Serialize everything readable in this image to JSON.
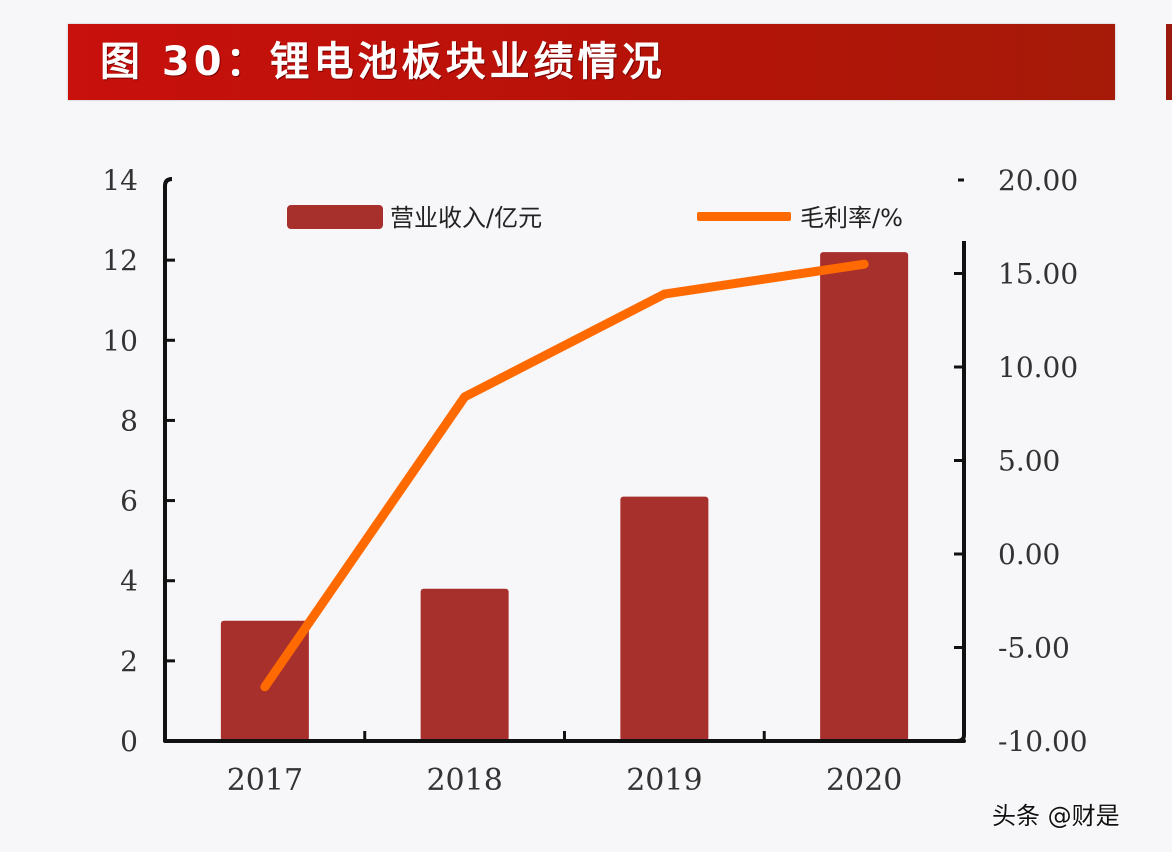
{
  "header": {
    "title": "图 30：锂电池板块业绩情况",
    "bg_color": "#b81208"
  },
  "watermark": "头条 @财是",
  "chart_data": {
    "type": "bar+line",
    "title": "图 30：锂电池板块业绩情况",
    "categories": [
      "2017",
      "2018",
      "2019",
      "2020"
    ],
    "series": [
      {
        "name": "营业收入/亿元",
        "type": "bar",
        "axis": "left",
        "color": "#a8302c",
        "values": [
          3.0,
          3.8,
          6.1,
          12.2
        ]
      },
      {
        "name": "毛利率/%",
        "type": "line",
        "axis": "right",
        "color": "#ff6a00",
        "values": [
          -7.1,
          8.4,
          13.9,
          15.5
        ]
      }
    ],
    "left_axis": {
      "label": "",
      "ylim": [
        0,
        14
      ],
      "ticks": [
        "0",
        "2",
        "4",
        "6",
        "8",
        "10",
        "12",
        "14"
      ]
    },
    "right_axis": {
      "label": "",
      "ylim": [
        -10,
        20
      ],
      "ticks": [
        "-10.00",
        "-5.00",
        "0.00",
        "5.00",
        "10.00",
        "15.00",
        "20.00"
      ]
    },
    "legend": {
      "position": "top-inside",
      "entries": [
        "营业收入/亿元",
        "毛利率/%"
      ]
    },
    "grid": false
  }
}
